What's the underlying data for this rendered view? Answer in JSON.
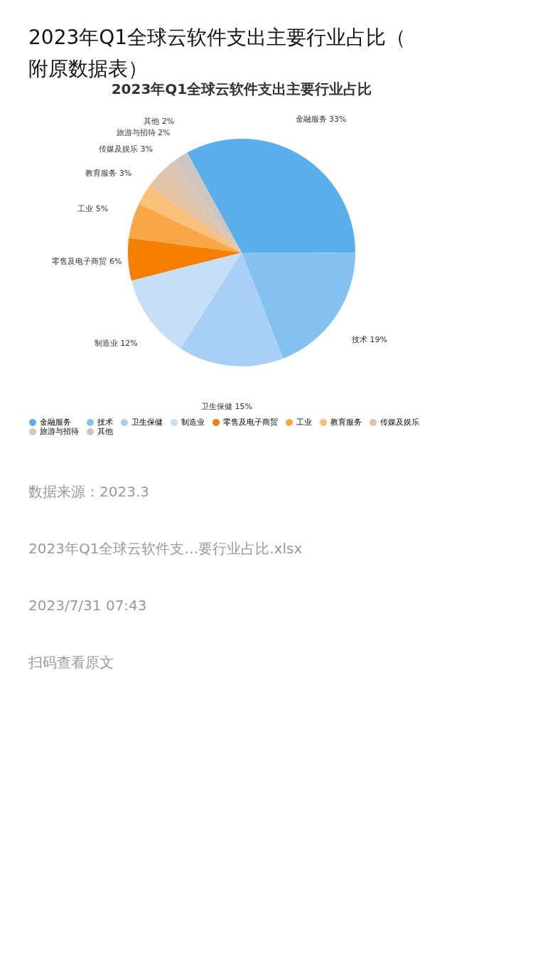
{
  "chart_data": {
    "type": "pie",
    "title": "2023年Q1全球云软件支出主要行业占比（附原数据表）",
    "subtitle": "2023年Q1全球云软件支出主要行业占比",
    "categories": [
      "金融服务",
      "技术",
      "卫生保健",
      "制造业",
      "零售及电子商贸",
      "工业",
      "教育服务",
      "传媒及娱乐",
      "旅游与招待",
      "其他"
    ],
    "values": [
      33,
      19,
      15,
      12,
      6,
      5,
      3,
      3,
      2,
      2
    ],
    "value_labels": [
      "33%",
      "19%",
      "15%",
      "12%",
      "6%",
      "5%",
      "3%",
      "3%",
      "2%",
      "2%"
    ],
    "colors": [
      "#5aaeea",
      "#85c1f0",
      "#a8cff5",
      "#c6dff6",
      "#f77f00",
      "#f9a646",
      "#fbc07a",
      "#e3c3a6",
      "#d8c7b6",
      "#cdc5be"
    ],
    "legend": "bottom",
    "annotations": [
      "数据来源：2023.3",
      "2023年Q1全球云软件支…要行业占比.xlsx",
      "2023/7/31 07:43",
      "扫码查看原文"
    ]
  }
}
